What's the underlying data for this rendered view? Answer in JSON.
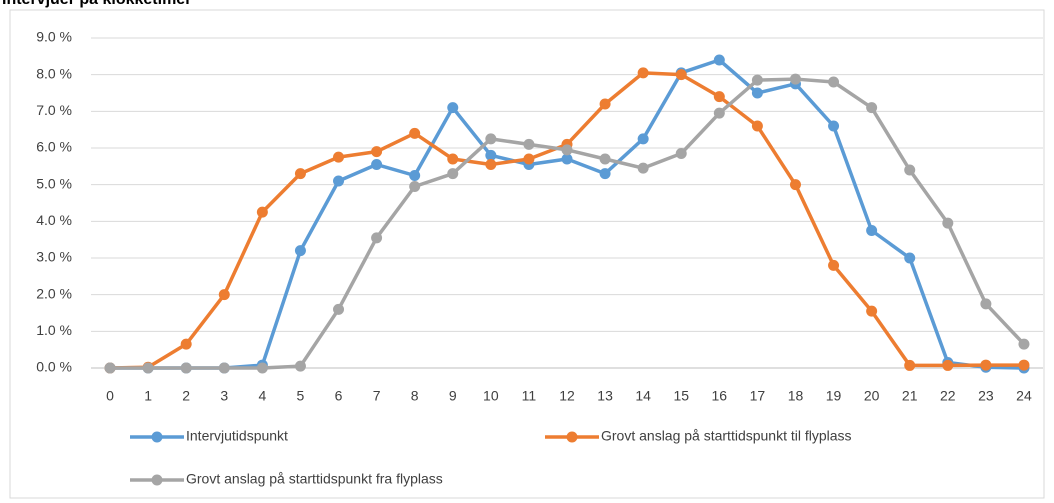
{
  "chart_data": {
    "type": "line",
    "title": "Intervjuer på klokketimer",
    "categories": [
      "0",
      "1",
      "2",
      "3",
      "4",
      "5",
      "6",
      "7",
      "8",
      "9",
      "10",
      "11",
      "12",
      "13",
      "14",
      "15",
      "16",
      "17",
      "18",
      "19",
      "20",
      "21",
      "22",
      "23",
      "24"
    ],
    "series": [
      {
        "name": "Intervjutidspunkt",
        "color": "#5b9bd5",
        "values": [
          0,
          0,
          0,
          0,
          0.08,
          3.2,
          5.1,
          5.55,
          5.25,
          7.1,
          5.8,
          5.55,
          5.7,
          5.3,
          6.25,
          8.05,
          8.4,
          7.5,
          7.75,
          6.6,
          3.75,
          3.0,
          0.15,
          0.02,
          0
        ]
      },
      {
        "name": "Grovt anslag på starttidspunkt til flyplass",
        "color": "#ed7d31",
        "values": [
          0,
          0.02,
          0.65,
          2.0,
          4.25,
          5.3,
          5.75,
          5.9,
          6.4,
          5.7,
          5.55,
          5.7,
          6.1,
          7.2,
          8.05,
          8.0,
          7.4,
          6.6,
          5.0,
          2.8,
          1.55,
          0.07,
          0.07,
          0.08,
          0.08
        ]
      },
      {
        "name": "Grovt anslag på starttidspunkt fra flyplass",
        "color": "#a5a5a5",
        "values": [
          0,
          0,
          0,
          0,
          0,
          0.05,
          1.6,
          3.55,
          4.95,
          5.3,
          6.25,
          6.1,
          5.95,
          5.7,
          5.45,
          5.85,
          6.95,
          7.85,
          7.88,
          7.8,
          7.1,
          5.4,
          3.95,
          1.75,
          0.65
        ]
      }
    ],
    "ylim": [
      0,
      9
    ],
    "yticks": [
      {
        "value": 0,
        "label": "0.0 %"
      },
      {
        "value": 1,
        "label": "1.0 %"
      },
      {
        "value": 2,
        "label": "2.0 %"
      },
      {
        "value": 3,
        "label": "3.0 %"
      },
      {
        "value": 4,
        "label": "4.0 %"
      },
      {
        "value": 5,
        "label": "5.0 %"
      },
      {
        "value": 6,
        "label": "6.0 %"
      },
      {
        "value": 7,
        "label": "7.0 %"
      },
      {
        "value": 8,
        "label": "8.0 %"
      },
      {
        "value": 9,
        "label": "9.0 %"
      }
    ],
    "grid": true
  }
}
